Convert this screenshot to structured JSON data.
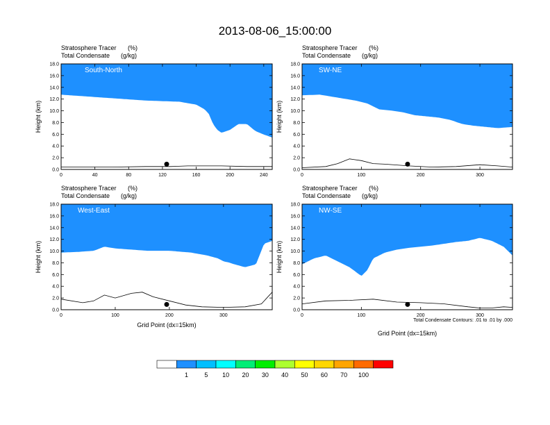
{
  "figure": {
    "title": "2013-08-06_15:00:00",
    "note": "Total Condensate Contours: .01 to .01 by .000"
  },
  "colors": {
    "levels": [
      "#ffffff",
      "#1e90ff",
      "#00bfff",
      "#00ffff",
      "#00ee76",
      "#00ee00",
      "#adff2f",
      "#ffff00",
      "#ffd700",
      "#ffa500",
      "#ff6a00",
      "#ff0000"
    ],
    "contour": "#000000",
    "marker": "#000000"
  },
  "colorbar": {
    "labels": [
      "1",
      "5",
      "10",
      "20",
      "30",
      "40",
      "50",
      "60",
      "70",
      "100"
    ]
  },
  "chart_data": [
    {
      "type": "heatmap",
      "panel_label": "South-North",
      "subtitle_left_1": "Stratosphere Tracer",
      "subtitle_units_1": "(%)",
      "subtitle_left_2": "Total Condensate",
      "subtitle_units_2": "(g/kg)",
      "ylabel": "Height (km)",
      "xlabel": "",
      "xlim": [
        0,
        250
      ],
      "ylim": [
        0,
        18
      ],
      "xticks": [
        "0",
        "40",
        "80",
        "120",
        "160",
        "200",
        "240"
      ],
      "yticks": [
        "0.0",
        "2.0",
        "4.0",
        "6.0",
        "8.0",
        "10.0",
        "12.0",
        "14.0",
        "16.0",
        "18.0"
      ],
      "tracer_base_km": {
        "x": [
          0,
          20,
          40,
          60,
          80,
          100,
          120,
          140,
          160,
          170,
          175,
          180,
          185,
          190,
          200,
          210,
          220,
          230,
          240,
          250
        ],
        "y": [
          14.5,
          14.3,
          14.1,
          13.9,
          13.7,
          13.5,
          13.4,
          13.3,
          12.8,
          12.0,
          11.2,
          9.5,
          8.5,
          8.0,
          8.5,
          9.5,
          9.5,
          8.3,
          7.7,
          7.2
        ]
      },
      "terrain_km": {
        "x": [
          0,
          60,
          100,
          130,
          150,
          170,
          190,
          220,
          250
        ],
        "y": [
          0.4,
          0.4,
          0.5,
          0.5,
          0.6,
          0.6,
          0.6,
          0.5,
          0.5
        ]
      },
      "marker_x": 125
    },
    {
      "type": "heatmap",
      "panel_label": "SW-NE",
      "subtitle_left_1": "Stratosphere Tracer",
      "subtitle_units_1": "(%)",
      "subtitle_left_2": "Total Condensate",
      "subtitle_units_2": "(g/kg)",
      "ylabel": "Height (km)",
      "xlabel": "",
      "xlim": [
        0,
        355
      ],
      "ylim": [
        0,
        18
      ],
      "xticks": [
        "0",
        "100",
        "200",
        "300"
      ],
      "yticks": [
        "0.0",
        "2.0",
        "4.0",
        "6.0",
        "8.0",
        "10.0",
        "12.0",
        "14.0",
        "16.0",
        "18.0"
      ],
      "tracer_base_km": {
        "x": [
          0,
          30,
          60,
          90,
          110,
          130,
          150,
          170,
          190,
          210,
          230,
          250,
          270,
          290,
          310,
          330,
          355
        ],
        "y": [
          14.4,
          14.5,
          14.0,
          13.5,
          13.0,
          12.0,
          11.8,
          11.5,
          11.0,
          10.8,
          10.6,
          10.2,
          9.5,
          9.2,
          9.0,
          8.8,
          9.0
        ]
      },
      "terrain_km": {
        "x": [
          0,
          40,
          60,
          80,
          100,
          120,
          140,
          180,
          220,
          260,
          300,
          330,
          355
        ],
        "y": [
          0.3,
          0.5,
          1.0,
          1.8,
          1.5,
          1.0,
          0.9,
          0.6,
          0.4,
          0.5,
          0.8,
          0.6,
          0.4
        ]
      },
      "marker_x": 178
    },
    {
      "type": "heatmap",
      "panel_label": "West-East",
      "subtitle_left_1": "Stratosphere Tracer",
      "subtitle_units_1": "(%)",
      "subtitle_left_2": "Total Condensate",
      "subtitle_units_2": "(g/kg)",
      "ylabel": "Height (km)",
      "xlabel": "Grid Point (dx=15km)",
      "xlim": [
        0,
        390
      ],
      "ylim": [
        0,
        18
      ],
      "xticks": [
        "0",
        "100",
        "200",
        "300"
      ],
      "yticks": [
        "0.0",
        "2.0",
        "4.0",
        "6.0",
        "8.0",
        "10.0",
        "12.0",
        "14.0",
        "16.0",
        "18.0"
      ],
      "tracer_base_km": {
        "x": [
          0,
          30,
          60,
          80,
          100,
          130,
          160,
          200,
          240,
          270,
          290,
          300,
          310,
          320,
          340,
          360,
          375,
          390
        ],
        "y": [
          11.5,
          11.6,
          11.8,
          12.5,
          12.2,
          12.0,
          11.8,
          11.8,
          11.5,
          11.0,
          10.5,
          10.0,
          9.8,
          9.5,
          9.0,
          9.5,
          13.0,
          13.5
        ]
      },
      "terrain_km": {
        "x": [
          0,
          40,
          60,
          80,
          100,
          130,
          150,
          170,
          200,
          230,
          260,
          300,
          340,
          370,
          390
        ],
        "y": [
          1.8,
          1.2,
          1.5,
          2.5,
          2.0,
          2.8,
          3.0,
          2.2,
          1.5,
          0.8,
          0.5,
          0.4,
          0.5,
          1.0,
          3.0
        ]
      },
      "marker_x": 195
    },
    {
      "type": "heatmap",
      "panel_label": "NW-SE",
      "subtitle_left_1": "Stratosphere Tracer",
      "subtitle_units_1": "(%)",
      "subtitle_left_2": "Total Condensate",
      "subtitle_units_2": "(g/kg)",
      "ylabel": "Height (km)",
      "xlabel": "Grid Point (dx=15km)",
      "xlim": [
        0,
        355
      ],
      "ylim": [
        0,
        18
      ],
      "xticks": [
        "0",
        "100",
        "200",
        "300"
      ],
      "yticks": [
        "0.0",
        "2.0",
        "4.0",
        "6.0",
        "8.0",
        "10.0",
        "12.0",
        "14.0",
        "16.0",
        "18.0"
      ],
      "tracer_base_km": {
        "x": [
          0,
          20,
          40,
          60,
          80,
          100,
          110,
          120,
          140,
          160,
          180,
          200,
          220,
          240,
          260,
          280,
          300,
          320,
          340,
          355
        ],
        "y": [
          9.5,
          10.5,
          11.0,
          10.0,
          9.0,
          7.5,
          8.5,
          10.5,
          11.5,
          12.0,
          12.3,
          12.5,
          12.7,
          13.0,
          13.3,
          13.5,
          14.0,
          13.5,
          12.5,
          11.0
        ]
      },
      "terrain_km": {
        "x": [
          0,
          40,
          80,
          120,
          160,
          200,
          240,
          280,
          300,
          320,
          340,
          355
        ],
        "y": [
          1.0,
          1.5,
          1.6,
          1.8,
          1.3,
          1.2,
          1.0,
          0.5,
          0.3,
          0.3,
          0.5,
          0.4
        ]
      },
      "marker_x": 178
    }
  ]
}
